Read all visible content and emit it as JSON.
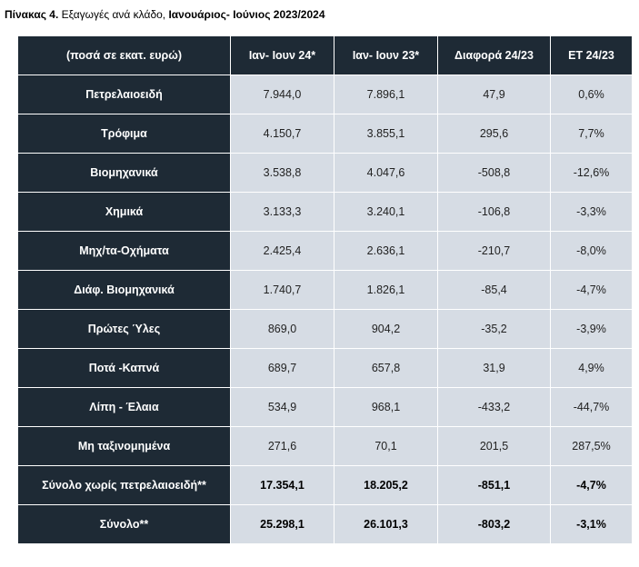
{
  "caption": {
    "prefix": "Πίνακας 4.",
    "middle": " Εξαγωγές ανά κλάδο, ",
    "suffix": "Ιανουάριος- Ιούνιος 2023/2024"
  },
  "table": {
    "headers": [
      "(ποσά σε εκατ. ευρώ)",
      "Ιαν-  Ιουν 24*",
      "Ιαν-  Ιουν 23*",
      "Διαφορά 24/23",
      "ΕΤ 24/23"
    ],
    "rows": [
      {
        "label": "Πετρελαιοειδή",
        "values": [
          "7.944,0",
          "7.896,1",
          "47,9",
          "0,6%"
        ]
      },
      {
        "label": "Τρόφιμα",
        "values": [
          "4.150,7",
          "3.855,1",
          "295,6",
          "7,7%"
        ]
      },
      {
        "label": "Βιομηχανικά",
        "values": [
          "3.538,8",
          "4.047,6",
          "-508,8",
          "-12,6%"
        ]
      },
      {
        "label": "Χημικά",
        "values": [
          "3.133,3",
          "3.240,1",
          "-106,8",
          "-3,3%"
        ]
      },
      {
        "label": "Μηχ/τα-Οχήματα",
        "values": [
          "2.425,4",
          "2.636,1",
          "-210,7",
          "-8,0%"
        ]
      },
      {
        "label": "Διάφ. Βιομηχανικά",
        "values": [
          "1.740,7",
          "1.826,1",
          "-85,4",
          "-4,7%"
        ]
      },
      {
        "label": "Πρώτες Ύλες",
        "values": [
          "869,0",
          "904,2",
          "-35,2",
          "-3,9%"
        ]
      },
      {
        "label": "Ποτά -Καπνά",
        "values": [
          "689,7",
          "657,8",
          "31,9",
          "4,9%"
        ]
      },
      {
        "label": "Λίπη - Έλαια",
        "values": [
          "534,9",
          "968,1",
          "-433,2",
          "-44,7%"
        ]
      },
      {
        "label": "Μη ταξινομημένα",
        "values": [
          "271,6",
          "70,1",
          "201,5",
          "287,5%"
        ]
      },
      {
        "label": "Σύνολο χωρίς πετρελαιοειδή**",
        "values": [
          "17.354,1",
          "18.205,2",
          "-851,1",
          "-4,7%"
        ],
        "total": true
      },
      {
        "label": "Σύνολο**",
        "values": [
          "25.298,1",
          "26.101,3",
          "-803,2",
          "-3,1%"
        ],
        "total": true
      }
    ]
  }
}
